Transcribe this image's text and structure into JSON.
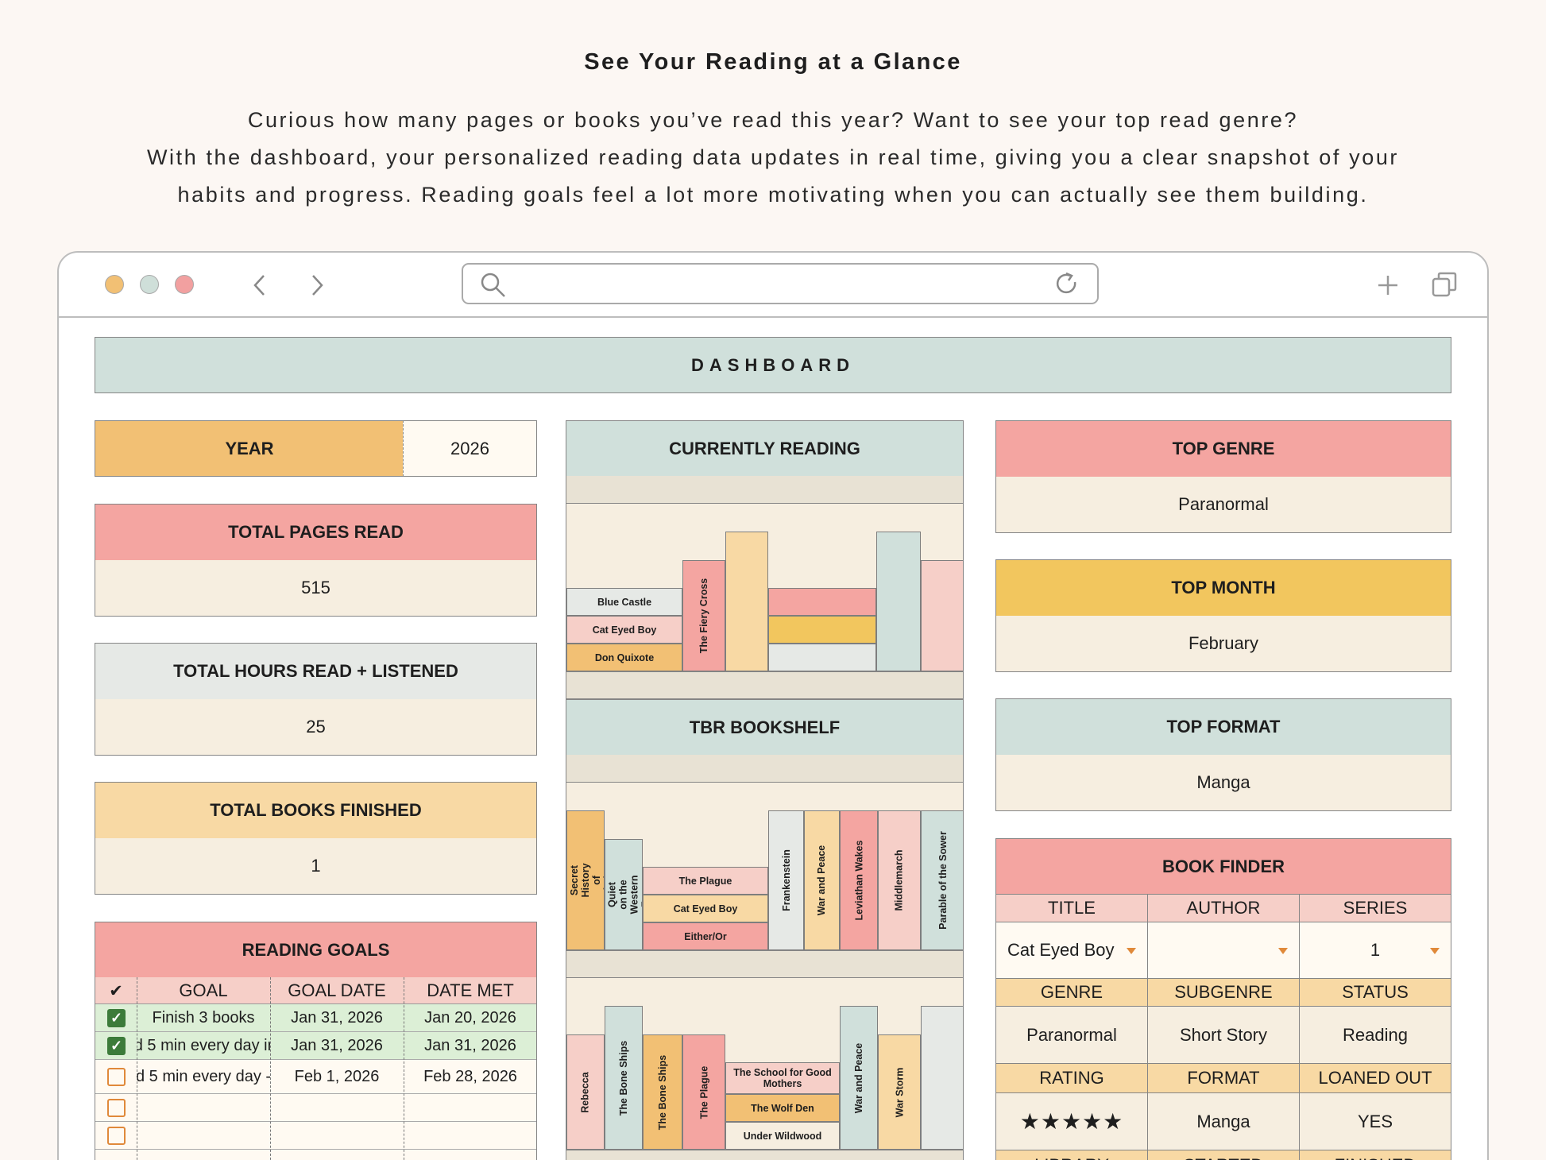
{
  "hero": {
    "title": "See Your Reading at a Glance",
    "line1": "Curious how many pages or books you’ve read this year? Want to see your top read genre?",
    "line2": "With the dashboard, your personalized reading data updates in real time, giving you a clear snapshot of your",
    "line3": "habits and progress. Reading goals feel a lot more motivating when you can actually see them building."
  },
  "browser": {
    "window_dots": [
      "#f2c074",
      "#cfdfd9",
      "#f2a0a0"
    ],
    "icons": [
      "back-icon",
      "forward-icon",
      "search-icon",
      "reload-icon",
      "new-tab-icon",
      "tabs-icon"
    ]
  },
  "dashboard": {
    "title": "DASHBOARD",
    "year_label": "YEAR",
    "year_value": "2026",
    "pages_label": "TOTAL PAGES READ",
    "pages_value": "515",
    "hours_label": "TOTAL HOURS READ + LISTENED",
    "hours_value": "25",
    "books_label": "TOTAL BOOKS FINISHED",
    "books_value": "1",
    "goals": {
      "title": "READING GOALS",
      "check_header": "✔",
      "headers": [
        "GOAL",
        "GOAL DATE",
        "DATE MET"
      ],
      "rows": [
        {
          "done": true,
          "goal": "Finish 3 books",
          "goal_date": "Jan 31, 2026",
          "date_met": "Jan 20, 2026"
        },
        {
          "done": true,
          "goal": "d 5 min every day ir",
          "goal_date": "Jan 31, 2026",
          "date_met": "Jan 31, 2026"
        },
        {
          "done": false,
          "goal": "d 5 min every day -",
          "goal_date": "Feb 1, 2026",
          "date_met": "Feb 28, 2026"
        },
        {
          "done": false,
          "goal": "",
          "goal_date": "",
          "date_met": ""
        },
        {
          "done": false,
          "goal": "",
          "goal_date": "",
          "date_met": ""
        }
      ]
    },
    "currently_reading": {
      "title": "CURRENTLY READING",
      "books": [
        "Blue Castle",
        "Cat Eyed Boy",
        "Don Quixote",
        "The Fiery Cross"
      ]
    },
    "tbr": {
      "title": "TBR BOOKSHELF",
      "shelf1": [
        "A Secret History of Witches",
        "All Quiet on the Western Front",
        "The Plague",
        "Cat Eyed Boy",
        "Either/Or",
        "Frankenstein",
        "War and Peace",
        "Leviathan Wakes",
        "Middlemarch",
        "Parable of the Sower"
      ],
      "shelf2": [
        "Rebecca",
        "The Bone Ships",
        "The Bone Ships",
        "The Plague",
        "The School for Good Mothers",
        "The Wolf Den",
        "Under Wildwood",
        "War and Peace",
        "War Storm"
      ]
    },
    "top_genre_label": "TOP GENRE",
    "top_genre_value": "Paranormal",
    "top_month_label": "TOP MONTH",
    "top_month_value": "February",
    "top_format_label": "TOP FORMAT",
    "top_format_value": "Manga",
    "finder": {
      "title": "BOOK FINDER",
      "title_label": "TITLE",
      "author_label": "AUTHOR",
      "series_label": "SERIES",
      "title_value": "Cat Eyed Boy",
      "author_value": "",
      "series_value": "1",
      "genre_label": "GENRE",
      "subgenre_label": "SUBGENRE",
      "status_label": "STATUS",
      "genre_value": "Paranormal",
      "subgenre_value": "Short Story",
      "status_value": "Reading",
      "rating_label": "RATING",
      "format_label": "FORMAT",
      "loaned_label": "LOANED OUT",
      "rating_value": "★★★★★",
      "rating_stars": 5,
      "format_value": "Manga",
      "loaned_value": "YES",
      "library_label": "LIBRARY",
      "started_label": "STARTED",
      "finished_label": "FINISHED"
    }
  }
}
